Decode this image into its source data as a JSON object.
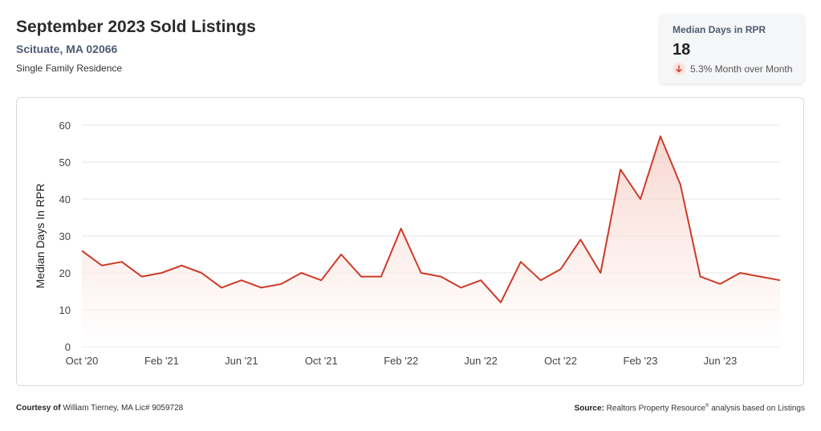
{
  "header": {
    "title": "September 2023 Sold Listings",
    "location": "Scituate, MA 02066",
    "property_type": "Single Family Residence"
  },
  "kpi": {
    "label": "Median Days in RPR",
    "value": "18",
    "change_text": "5.3% Month over Month",
    "direction_icon": "arrow-down-icon"
  },
  "footer": {
    "courtesy_label": "Courtesy of",
    "courtesy_text": "William Tierney, MA Lic# 9059728",
    "source_label": "Source:",
    "source_text_1": "Realtors Property Resource",
    "source_mark": "®",
    "source_text_2": " analysis based on Listings"
  },
  "colors": {
    "line": "#cc3b28",
    "fill_top": "#f6c9c0",
    "grid": "#e3e3e3",
    "axis_text": "#444444"
  },
  "chart_data": {
    "type": "area",
    "ylabel": "Median Days In RPR",
    "xlabel": "",
    "ylim": [
      0,
      60
    ],
    "yticks": [
      0,
      10,
      20,
      30,
      40,
      50,
      60
    ],
    "x_tick_labels": [
      "Oct '20",
      "Feb '21",
      "Jun '21",
      "Oct '21",
      "Feb '22",
      "Jun '22",
      "Oct '22",
      "Feb '23",
      "Jun '23"
    ],
    "x_tick_every": 4,
    "grid": true,
    "months": [
      "Oct 2020",
      "Nov 2020",
      "Dec 2020",
      "Jan 2021",
      "Feb 2021",
      "Mar 2021",
      "Apr 2021",
      "May 2021",
      "Jun 2021",
      "Jul 2021",
      "Aug 2021",
      "Sep 2021",
      "Oct 2021",
      "Nov 2021",
      "Dec 2021",
      "Jan 2022",
      "Feb 2022",
      "Mar 2022",
      "Apr 2022",
      "May 2022",
      "Jun 2022",
      "Jul 2022",
      "Aug 2022",
      "Sep 2022",
      "Oct 2022",
      "Nov 2022",
      "Dec 2022",
      "Jan 2023",
      "Feb 2023",
      "Mar 2023",
      "Apr 2023",
      "May 2023",
      "Jun 2023",
      "Jul 2023",
      "Aug 2023",
      "Sep 2023"
    ],
    "values": [
      26,
      22,
      23,
      19,
      20,
      22,
      20,
      16,
      18,
      16,
      17,
      20,
      18,
      25,
      19,
      19,
      32,
      20,
      19,
      16,
      18,
      12,
      23,
      18,
      21,
      29,
      20,
      48,
      40,
      57,
      44,
      19,
      17,
      20,
      19,
      18
    ]
  }
}
